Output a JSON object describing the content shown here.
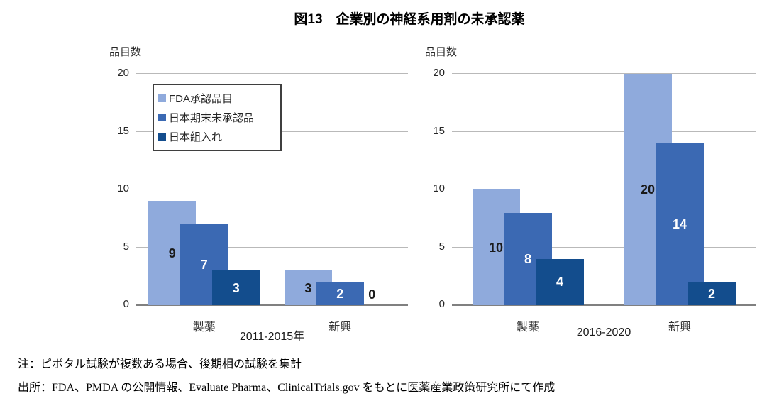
{
  "title": "図13　企業別の神経系用剤の未承認薬",
  "legend": {
    "items": [
      {
        "label": "FDA承認品目",
        "color": "#8FAADC"
      },
      {
        "label": "日本期末未承認品",
        "color": "#3B69B3"
      },
      {
        "label": "日本組入れ",
        "color": "#134D8D"
      }
    ]
  },
  "notes": {
    "note": "注：ピボタル試験が複数ある場合、後期相の試験を集計",
    "source": "出所：FDA、PMDA の公開情報、Evaluate Pharma、ClinicalTrials.gov をもとに医薬産業政策研究所にて作成"
  },
  "chart_data": [
    {
      "type": "bar",
      "title": "2011-2015年",
      "ylabel": "品目数",
      "categories": [
        "製薬",
        "新興"
      ],
      "series": [
        {
          "name": "FDA承認品目",
          "color": "#8FAADC",
          "label_color": "#1a1a1a",
          "values": [
            9,
            3
          ]
        },
        {
          "name": "日本期末未承認品",
          "color": "#3B69B3",
          "label_color": "#ffffff",
          "values": [
            7,
            2
          ]
        },
        {
          "name": "日本組入れ",
          "color": "#134D8D",
          "label_color": "#ffffff",
          "values": [
            3,
            0
          ]
        }
      ],
      "ylim": [
        0,
        20
      ],
      "yticks": [
        0,
        5,
        10,
        15,
        20
      ],
      "grid": true,
      "legend_position": "upper-left-inside"
    },
    {
      "type": "bar",
      "title": "2016-2020",
      "ylabel": "品目数",
      "categories": [
        "製薬",
        "新興"
      ],
      "series": [
        {
          "name": "FDA承認品目",
          "color": "#8FAADC",
          "label_color": "#1a1a1a",
          "values": [
            10,
            20
          ]
        },
        {
          "name": "日本期末未承認品",
          "color": "#3B69B3",
          "label_color": "#ffffff",
          "values": [
            8,
            14
          ]
        },
        {
          "name": "日本組入れ",
          "color": "#134D8D",
          "label_color": "#ffffff",
          "values": [
            4,
            2
          ]
        }
      ],
      "ylim": [
        0,
        20
      ],
      "yticks": [
        0,
        5,
        10,
        15,
        20
      ],
      "grid": true,
      "legend_position": "none"
    }
  ]
}
